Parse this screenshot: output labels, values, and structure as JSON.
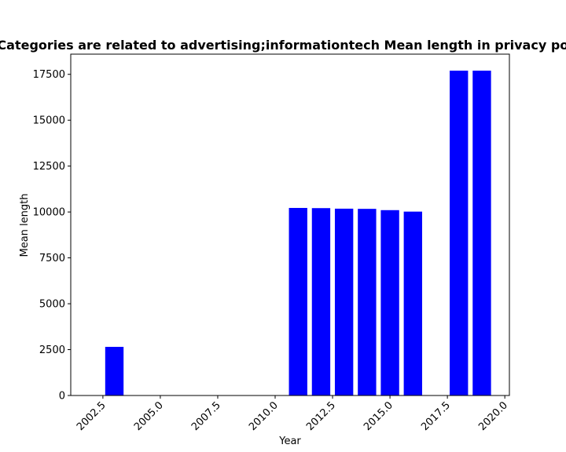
{
  "chart_data": {
    "type": "bar",
    "title": "Categories are related to advertising;informationtech Mean length in privacy policies",
    "xlabel": "Year",
    "ylabel": "Mean length",
    "x": [
      2003,
      2011,
      2012,
      2013,
      2014,
      2015,
      2016,
      2018,
      2019
    ],
    "values": [
      2650,
      10220,
      10210,
      10180,
      10170,
      10100,
      10020,
      17700,
      17700
    ],
    "xlim": [
      2001.1,
      2020.2
    ],
    "ylim": [
      0,
      18600
    ],
    "xticks": [
      2002.5,
      2005.0,
      2007.5,
      2010.0,
      2012.5,
      2015.0,
      2017.5,
      2020.0
    ],
    "xtick_labels": [
      "2002.5",
      "2005.0",
      "2007.5",
      "2010.0",
      "2012.5",
      "2015.0",
      "2017.5",
      "2020.0"
    ],
    "yticks": [
      0,
      2500,
      5000,
      7500,
      10000,
      12500,
      15000,
      17500
    ],
    "ytick_labels": [
      "0",
      "2500",
      "5000",
      "7500",
      "10000",
      "12500",
      "15000",
      "17500"
    ],
    "bar_color": "#0000ff",
    "grid": false,
    "legend": "none"
  }
}
